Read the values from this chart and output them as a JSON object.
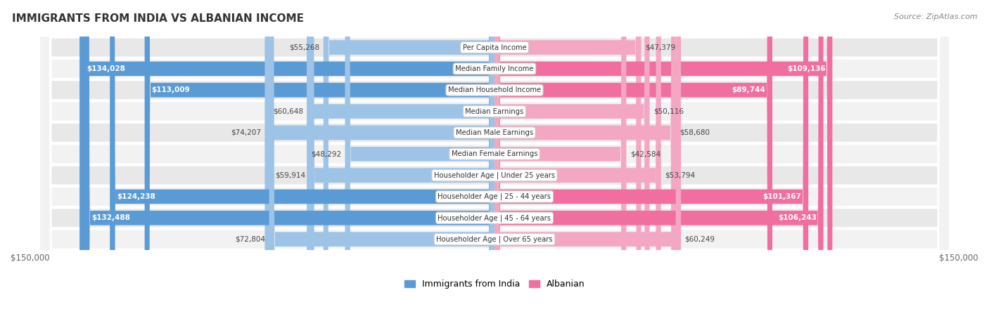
{
  "title": "IMMIGRANTS FROM INDIA VS ALBANIAN INCOME",
  "source": "Source: ZipAtlas.com",
  "categories": [
    "Per Capita Income",
    "Median Family Income",
    "Median Household Income",
    "Median Earnings",
    "Median Male Earnings",
    "Median Female Earnings",
    "Householder Age | Under 25 years",
    "Householder Age | 25 - 44 years",
    "Householder Age | 45 - 64 years",
    "Householder Age | Over 65 years"
  ],
  "india_values": [
    55268,
    134028,
    113009,
    60648,
    74207,
    48292,
    59914,
    124238,
    132488,
    72804
  ],
  "albanian_values": [
    47379,
    109136,
    89744,
    50116,
    58680,
    42584,
    53794,
    101367,
    106243,
    60249
  ],
  "india_color_dark": "#5b9bd5",
  "india_color_light": "#9dc3e6",
  "albanian_color_dark": "#f06fa0",
  "albanian_color_light": "#f4a7c3",
  "india_label": "Immigrants from India",
  "albanian_label": "Albanian",
  "max_value": 150000,
  "xlabel_left": "$150,000",
  "xlabel_right": "$150,000",
  "row_bg_dark": "#e8e8e8",
  "row_bg_light": "#f2f2f2",
  "fig_bg": "#ffffff"
}
